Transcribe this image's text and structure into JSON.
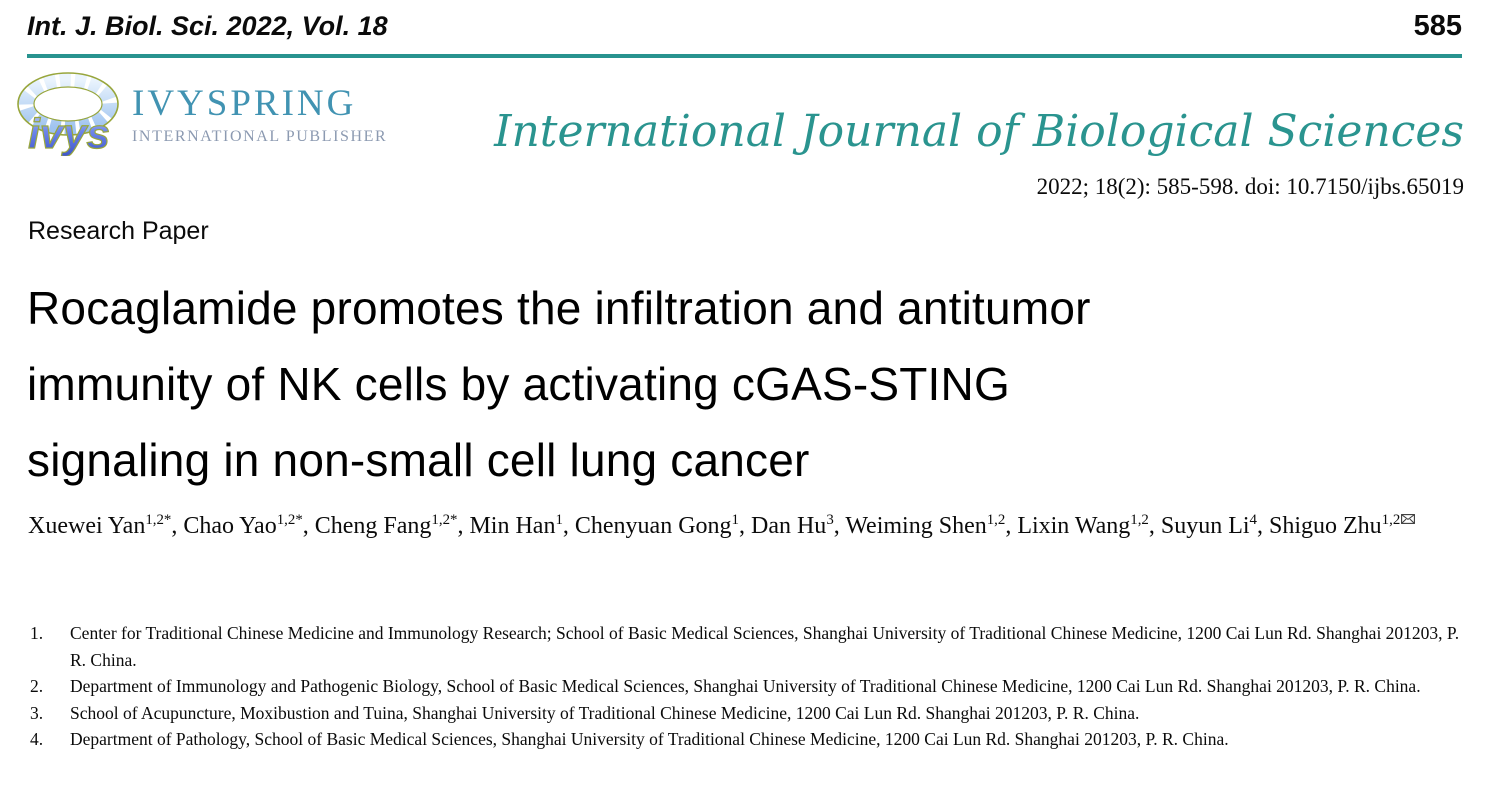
{
  "header": {
    "journal_ref": "Int. J. Biol. Sci. 2022, Vol. 18",
    "page_number": "585"
  },
  "publisher": {
    "name": "IVYSPRING",
    "subtitle": "INTERNATIONAL PUBLISHER",
    "logo_ring_text": "ivys"
  },
  "journal": {
    "name": "International Journal of Biological Sciences",
    "citation": "2022; 18(2): 585-598. doi: 10.7150/ijbs.65019"
  },
  "article": {
    "type_label": "Research Paper",
    "title": "Rocaglamide promotes the infiltration and antitumor immunity of NK cells by activating cGAS-STING signaling in non-small cell lung cancer",
    "title_lines": [
      "Rocaglamide promotes the infiltration and antitumor",
      "immunity of NK cells by activating cGAS-STING",
      "signaling in non-small cell lung cancer"
    ],
    "authors": [
      {
        "name": "Xuewei Yan",
        "sup": "1,2*",
        "corresponding": false
      },
      {
        "name": "Chao Yao",
        "sup": "1,2*",
        "corresponding": false
      },
      {
        "name": "Cheng Fang",
        "sup": "1,2*",
        "corresponding": false
      },
      {
        "name": "Min Han",
        "sup": "1",
        "corresponding": false
      },
      {
        "name": "Chenyuan Gong",
        "sup": "1",
        "corresponding": false
      },
      {
        "name": "Dan Hu",
        "sup": "3",
        "corresponding": false
      },
      {
        "name": "Weiming Shen",
        "sup": "1,2",
        "corresponding": false
      },
      {
        "name": "Lixin Wang",
        "sup": "1,2",
        "corresponding": false
      },
      {
        "name": "Suyun Li",
        "sup": "4",
        "corresponding": false
      },
      {
        "name": "Shiguo Zhu",
        "sup": "1,2",
        "corresponding": true
      }
    ],
    "affiliations": [
      "Center for Traditional Chinese Medicine and Immunology Research; School of Basic Medical Sciences, Shanghai University of Traditional Chinese Medicine, 1200 Cai Lun Rd. Shanghai 201203, P. R. China.",
      "Department of Immunology and Pathogenic Biology, School of Basic Medical Sciences, Shanghai University of Traditional Chinese Medicine, 1200 Cai Lun Rd. Shanghai 201203, P. R. China.",
      "School of Acupuncture, Moxibustion and Tuina, Shanghai University of Traditional Chinese Medicine, 1200 Cai Lun Rd. Shanghai 201203, P. R. China.",
      "Department of Pathology, School of Basic Medical Sciences, Shanghai University of Traditional Chinese Medicine, 1200 Cai Lun Rd. Shanghai 201203, P. R. China."
    ]
  },
  "colors": {
    "accent_teal": "#28938f",
    "journal_name_teal": "#2a948f",
    "publisher_name_blue": "#4193b2",
    "publisher_sub_grey": "#8c9ab1",
    "logo_blue_dark": "#3c55c8",
    "logo_blue_light": "#d9ecfb",
    "logo_olive": "#98a63c"
  }
}
